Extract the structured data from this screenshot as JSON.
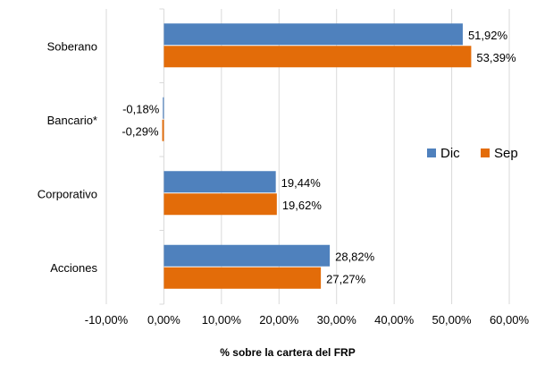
{
  "chart_data": {
    "type": "bar",
    "orientation": "horizontal",
    "categories": [
      "Soberano",
      "Bancario*",
      "Corporativo",
      "Acciones"
    ],
    "series": [
      {
        "name": "Dic",
        "color": "#4F81BD",
        "values": [
          51.92,
          -0.18,
          19.44,
          28.82
        ],
        "labels": [
          "51,92%",
          "-0,18%",
          "19,44%",
          "28,82%"
        ]
      },
      {
        "name": "Sep",
        "color": "#E36C09",
        "values": [
          53.39,
          -0.29,
          19.62,
          27.27
        ],
        "labels": [
          "53,39%",
          "-0,29%",
          "19,62%",
          "27,27%"
        ]
      }
    ],
    "xlim": [
      -10,
      60
    ],
    "xticks": [
      -10,
      0,
      10,
      20,
      30,
      40,
      50,
      60
    ],
    "xtick_labels": [
      "-10,00%",
      "0,00%",
      "10,00%",
      "20,00%",
      "30,00%",
      "40,00%",
      "50,00%",
      "60,00%"
    ],
    "xlabel": "% sobre la cartera del FRP",
    "grid": "vertical",
    "legend": "right"
  }
}
